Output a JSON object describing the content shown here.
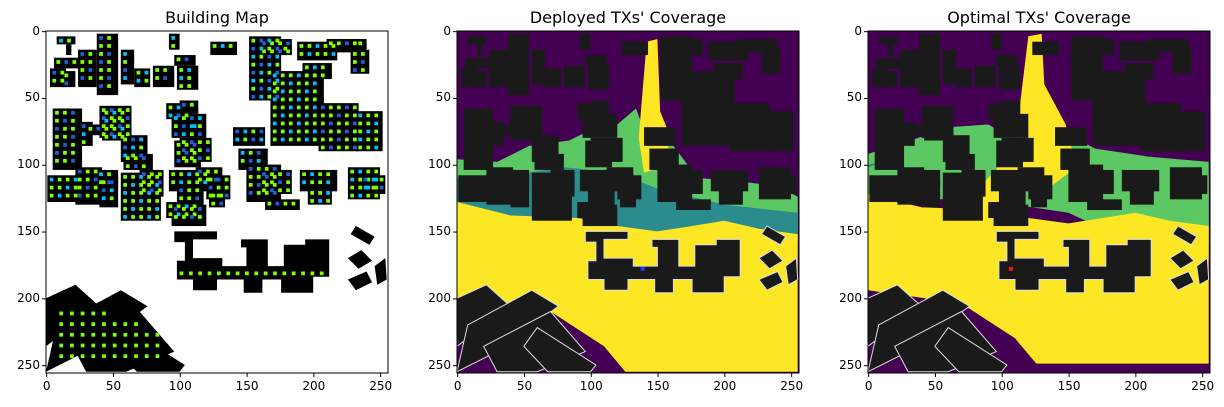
{
  "figure": {
    "panels": [
      {
        "title": "Building Map"
      },
      {
        "title": "Deployed TXs' Coverage"
      },
      {
        "title": "Optimal TXs' Coverage"
      }
    ]
  },
  "colors": {
    "building": "#1a1a1a",
    "background": "#ffffff",
    "coverage_low": "#440154",
    "coverage_mid_low": "#2a8c8c",
    "coverage_mid": "#5cc863",
    "coverage_high": "#fde725",
    "candidate_high": "#7fff00",
    "candidate_mid": "#00bfff",
    "candidate_low": "#1e5fd8",
    "deployed_tx": "#1f3cff",
    "optimal_tx": "#ff1010"
  },
  "chart_data": [
    {
      "type": "heatmap",
      "title": "Building Map",
      "xlabel": "",
      "ylabel": "",
      "xlim": [
        0,
        255
      ],
      "ylim": [
        255,
        0
      ],
      "x_ticks": [
        0,
        50,
        100,
        150,
        200,
        250
      ],
      "y_ticks": [
        0,
        50,
        100,
        150,
        200,
        250
      ],
      "grid": false
    },
    {
      "type": "heatmap",
      "title": "Deployed TXs' Coverage",
      "xlabel": "",
      "ylabel": "",
      "xlim": [
        0,
        255
      ],
      "ylim": [
        255,
        0
      ],
      "x_ticks": [
        0,
        50,
        100,
        150,
        200,
        250
      ],
      "y_ticks": [
        0,
        50,
        100,
        150,
        200,
        250
      ],
      "grid": false,
      "transmitters": [
        {
          "x": 139,
          "y": 178
        }
      ]
    },
    {
      "type": "heatmap",
      "title": "Optimal TXs' Coverage",
      "xlabel": "",
      "ylabel": "",
      "xlim": [
        0,
        255
      ],
      "ylim": [
        255,
        0
      ],
      "x_ticks": [
        0,
        50,
        100,
        150,
        200,
        250
      ],
      "y_ticks": [
        0,
        50,
        100,
        150,
        200,
        250
      ],
      "grid": false,
      "transmitters": [
        {
          "x": 107,
          "y": 178
        }
      ]
    }
  ]
}
